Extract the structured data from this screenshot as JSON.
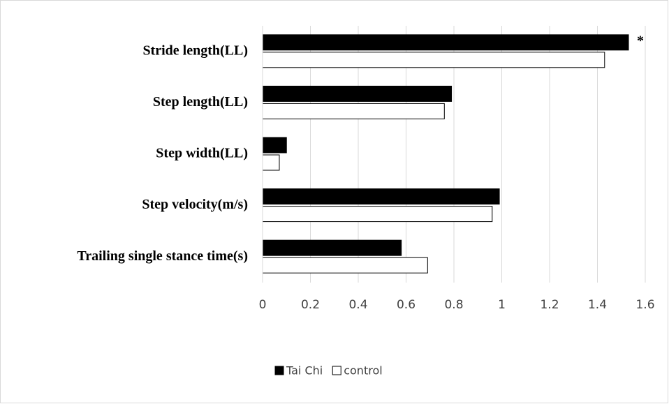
{
  "chart_data": {
    "type": "barh",
    "categories": [
      "Stride length(LL)",
      "Step length(LL)",
      "Step width(LL)",
      "Step velocity(m/s)",
      "Trailing single stance time(s)"
    ],
    "series": [
      {
        "name": "Tai Chi",
        "color": "#000000",
        "values": [
          1.53,
          0.79,
          0.1,
          0.99,
          0.58
        ]
      },
      {
        "name": "control",
        "color": "#ffffff",
        "values": [
          1.43,
          0.76,
          0.07,
          0.96,
          0.69
        ]
      }
    ],
    "annotation": "*",
    "xlim": [
      0,
      1.6
    ],
    "xticks": [
      0,
      0.2,
      0.4,
      0.6,
      0.8,
      1,
      1.2,
      1.4,
      1.6
    ],
    "grid": true,
    "legend": "bottom"
  }
}
